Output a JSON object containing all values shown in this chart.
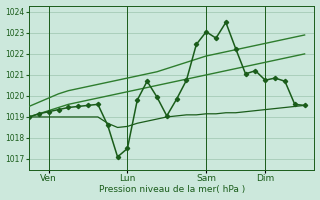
{
  "bg_color": "#cce8dc",
  "grid_color": "#aacfbc",
  "line_dark": "#1a5c1a",
  "line_med": "#2e7d2e",
  "xlabel": "Pression niveau de la mer( hPa )",
  "ylim": [
    1016.5,
    1024.3
  ],
  "yticks": [
    1017,
    1018,
    1019,
    1020,
    1021,
    1022,
    1023,
    1024
  ],
  "day_labels": [
    "Ven",
    "Lun",
    "Sam",
    "Dim"
  ],
  "day_positions": [
    2,
    10,
    18,
    24
  ],
  "vline_positions": [
    2,
    10,
    18,
    24
  ],
  "xlim": [
    0,
    29
  ],
  "x_main": [
    0,
    1,
    2,
    3,
    4,
    5,
    6,
    7,
    8,
    9,
    10,
    11,
    12,
    13,
    14,
    15,
    16,
    17,
    18,
    19,
    20,
    21,
    22,
    23,
    24,
    25,
    26,
    27,
    28
  ],
  "y_main": [
    1019.0,
    1019.15,
    1019.25,
    1019.35,
    1019.45,
    1019.5,
    1019.55,
    1019.6,
    1018.6,
    1017.1,
    1017.5,
    1019.8,
    1020.7,
    1019.95,
    1019.05,
    1019.85,
    1020.75,
    1022.45,
    1023.05,
    1022.75,
    1023.5,
    1022.25,
    1021.05,
    1021.2,
    1020.75,
    1020.85,
    1020.7,
    1019.6,
    1019.55
  ],
  "y_flat": [
    1019.0,
    1019.0,
    1019.0,
    1019.0,
    1019.0,
    1019.0,
    1019.0,
    1019.0,
    1018.7,
    1018.5,
    1018.55,
    1018.7,
    1018.8,
    1018.9,
    1019.0,
    1019.05,
    1019.1,
    1019.1,
    1019.15,
    1019.15,
    1019.2,
    1019.2,
    1019.25,
    1019.3,
    1019.35,
    1019.4,
    1019.45,
    1019.5,
    1019.55
  ],
  "y_trend1": [
    1019.0,
    1019.15,
    1019.3,
    1019.45,
    1019.6,
    1019.7,
    1019.8,
    1019.9,
    1020.0,
    1020.1,
    1020.2,
    1020.3,
    1020.4,
    1020.5,
    1020.6,
    1020.7,
    1020.8,
    1020.9,
    1021.0,
    1021.1,
    1021.2,
    1021.3,
    1021.4,
    1021.5,
    1021.6,
    1021.7,
    1021.8,
    1021.9,
    1022.0
  ],
  "y_trend2": [
    1019.5,
    1019.7,
    1019.9,
    1020.1,
    1020.25,
    1020.35,
    1020.45,
    1020.55,
    1020.65,
    1020.75,
    1020.85,
    1020.95,
    1021.05,
    1021.15,
    1021.3,
    1021.45,
    1021.6,
    1021.75,
    1021.9,
    1022.0,
    1022.1,
    1022.2,
    1022.3,
    1022.4,
    1022.5,
    1022.6,
    1022.7,
    1022.8,
    1022.9
  ]
}
